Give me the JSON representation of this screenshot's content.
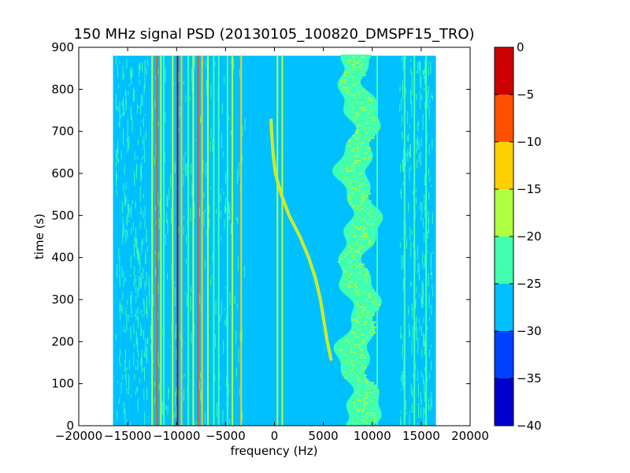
{
  "chart_data": {
    "type": "heatmap",
    "title": "150 MHz signal PSD (20130105_100820_DMSPF15_TRO)",
    "xlabel": "frequency (Hz)",
    "ylabel": "time (s)",
    "xlim": [
      -20000,
      20000
    ],
    "ylim": [
      0,
      900
    ],
    "x_ticks": [
      -20000,
      -15000,
      -10000,
      -5000,
      0,
      5000,
      10000,
      15000,
      20000
    ],
    "y_ticks": [
      0,
      100,
      200,
      300,
      400,
      500,
      600,
      700,
      800,
      900
    ],
    "data_extent": {
      "freq": [
        -16500,
        16500
      ],
      "time": [
        0,
        880
      ]
    },
    "background_level": -27.5,
    "colorbar": {
      "levels": [
        -40,
        -35,
        -30,
        -25,
        -20,
        -15,
        -10,
        -5,
        0
      ],
      "tick_labels": [
        "0",
        "−5",
        "−10",
        "−15",
        "−20",
        "−25",
        "−30",
        "−35",
        "−40"
      ],
      "colors": [
        "#0000cc",
        "#0040ff",
        "#00c0ff",
        "#40ffb0",
        "#b0ff40",
        "#ffd000",
        "#ff5000",
        "#cc0000"
      ]
    },
    "doppler_trace": [
      {
        "time": 155,
        "freq": 5800
      },
      {
        "time": 200,
        "freq": 5400
      },
      {
        "time": 300,
        "freq": 4700
      },
      {
        "time": 350,
        "freq": 4200
      },
      {
        "time": 400,
        "freq": 3500
      },
      {
        "time": 450,
        "freq": 2600
      },
      {
        "time": 500,
        "freq": 1500
      },
      {
        "time": 550,
        "freq": 700
      },
      {
        "time": 600,
        "freq": 100
      },
      {
        "time": 650,
        "freq": -150
      },
      {
        "time": 700,
        "freq": -300
      },
      {
        "time": 730,
        "freq": -350
      }
    ],
    "vertical_lines": [
      {
        "freq": -12500,
        "level": -17.5
      },
      {
        "freq": -12000,
        "level": -7.5
      },
      {
        "freq": -11600,
        "level": -17.5
      },
      {
        "freq": -11300,
        "level": -22.5
      },
      {
        "freq": -10400,
        "level": -17.5
      },
      {
        "freq": -9900,
        "level": -2.5
      },
      {
        "freq": -9500,
        "level": -12.5
      },
      {
        "freq": -8800,
        "level": -22.5
      },
      {
        "freq": -8300,
        "level": -17.5
      },
      {
        "freq": -7800,
        "level": -7.5
      },
      {
        "freq": -7400,
        "level": -12.5
      },
      {
        "freq": -6800,
        "level": -17.5
      },
      {
        "freq": -6200,
        "level": -22.5
      },
      {
        "freq": -5700,
        "level": -22.5
      },
      {
        "freq": -4800,
        "level": -22.5
      },
      {
        "freq": -4300,
        "level": -17.5
      },
      {
        "freq": -3400,
        "level": -12.5
      },
      {
        "freq": 300,
        "level": -17.5
      },
      {
        "freq": 800,
        "level": -17.5
      },
      {
        "freq": 10500,
        "level": -22.5
      },
      {
        "freq": 13300,
        "level": -22.5
      },
      {
        "freq": 14300,
        "level": -22.5
      },
      {
        "freq": 15500,
        "level": -22.5
      }
    ],
    "noise_bands": [
      {
        "freq_range": [
          -16200,
          -13000
        ],
        "level": -22.5
      },
      {
        "freq_range": [
          -13000,
          -3000
        ],
        "level": -22.5
      },
      {
        "freq_range": [
          12800,
          16200
        ],
        "level": -22.5
      }
    ]
  }
}
